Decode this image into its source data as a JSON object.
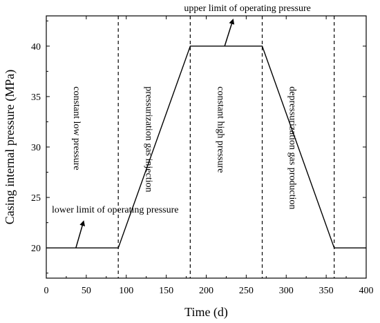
{
  "chart_data": {
    "type": "line",
    "xlabel": "Time (d)",
    "ylabel": "Casing internal pressure (MPa)",
    "xlim": [
      0,
      400
    ],
    "ylim": [
      17,
      43
    ],
    "xticks": [
      0,
      50,
      100,
      150,
      200,
      250,
      300,
      350,
      400
    ],
    "yticks": [
      20,
      25,
      30,
      35,
      40
    ],
    "grid": false,
    "series": [
      {
        "x": [
          0,
          90,
          180,
          270,
          360,
          400
        ],
        "y": [
          20,
          20,
          40,
          40,
          20,
          20
        ]
      }
    ],
    "phase_boundaries": [
      90,
      180,
      270,
      360
    ],
    "phases": [
      {
        "label": "constant low pressure",
        "x": 45
      },
      {
        "label": "pressurization gas injection",
        "x": 135
      },
      {
        "label": "constant high pressure",
        "x": 225
      },
      {
        "label": "depressurization gas production",
        "x": 315
      }
    ],
    "annotations": [
      {
        "text": "lower limit of operating pressure",
        "point": [
          37,
          20
        ]
      },
      {
        "text": "upper limit of operating pressure",
        "point": [
          223,
          40
        ]
      }
    ]
  }
}
